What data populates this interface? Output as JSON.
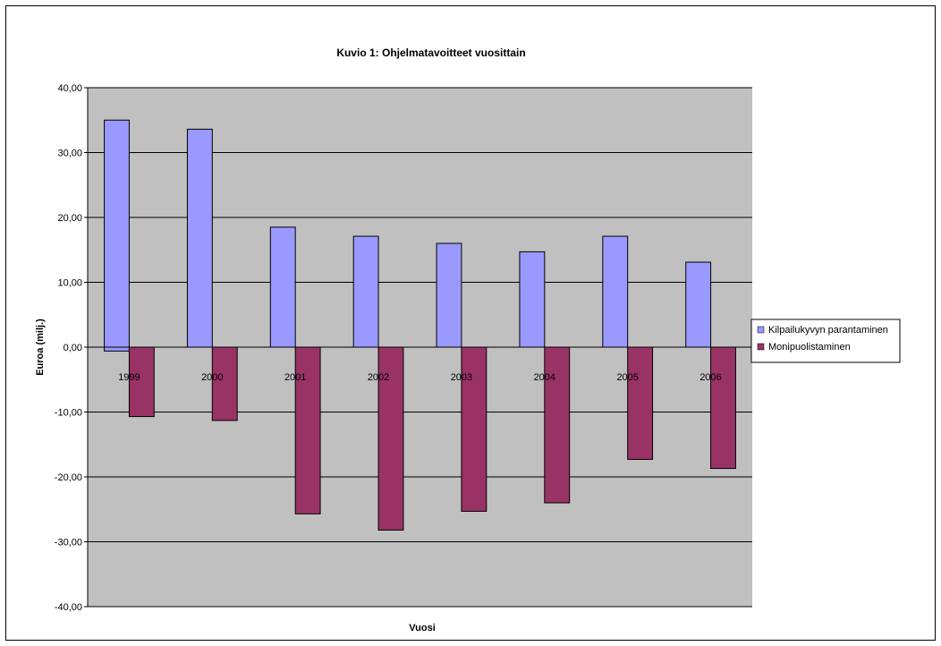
{
  "chart_data": {
    "type": "bar",
    "title": "Kuvio 1: Ohjelmatavoitteet vuosittain",
    "xlabel": "Vuosi",
    "ylabel": "Euroa (milj.)",
    "ylim": [
      -40,
      40
    ],
    "y_ticks": [
      "40,00",
      "30,00",
      "20,00",
      "10,00",
      "0,00",
      "-10,00",
      "-20,00",
      "-30,00",
      "-40,00"
    ],
    "y_tick_values": [
      40,
      30,
      20,
      10,
      0,
      -10,
      -20,
      -30,
      -40
    ],
    "categories": [
      "1999",
      "2000",
      "2001",
      "2002",
      "2003",
      "2004",
      "2005",
      "2006"
    ],
    "grid": true,
    "legend_position": "right",
    "series": [
      {
        "name": "Kilpailukyvyn parantaminen",
        "color": "#9999ff",
        "values": [
          -0.6,
          33.6,
          18.5,
          17.1,
          16.0,
          14.7,
          17.1,
          13.1
        ],
        "bar_top_values": [
          35.0,
          33.6,
          18.5,
          17.1,
          16.0,
          14.7,
          17.1,
          13.1
        ],
        "bar_bottom_values": [
          -0.6,
          0,
          0,
          0,
          0,
          0,
          0,
          0
        ]
      },
      {
        "name": "Monipuolistaminen",
        "color": "#993366",
        "values": [
          -10.7,
          -11.3,
          -25.7,
          -28.2,
          -25.3,
          -24.0,
          -17.3,
          -18.7
        ]
      }
    ],
    "plot_background": "#c0c0c0"
  }
}
